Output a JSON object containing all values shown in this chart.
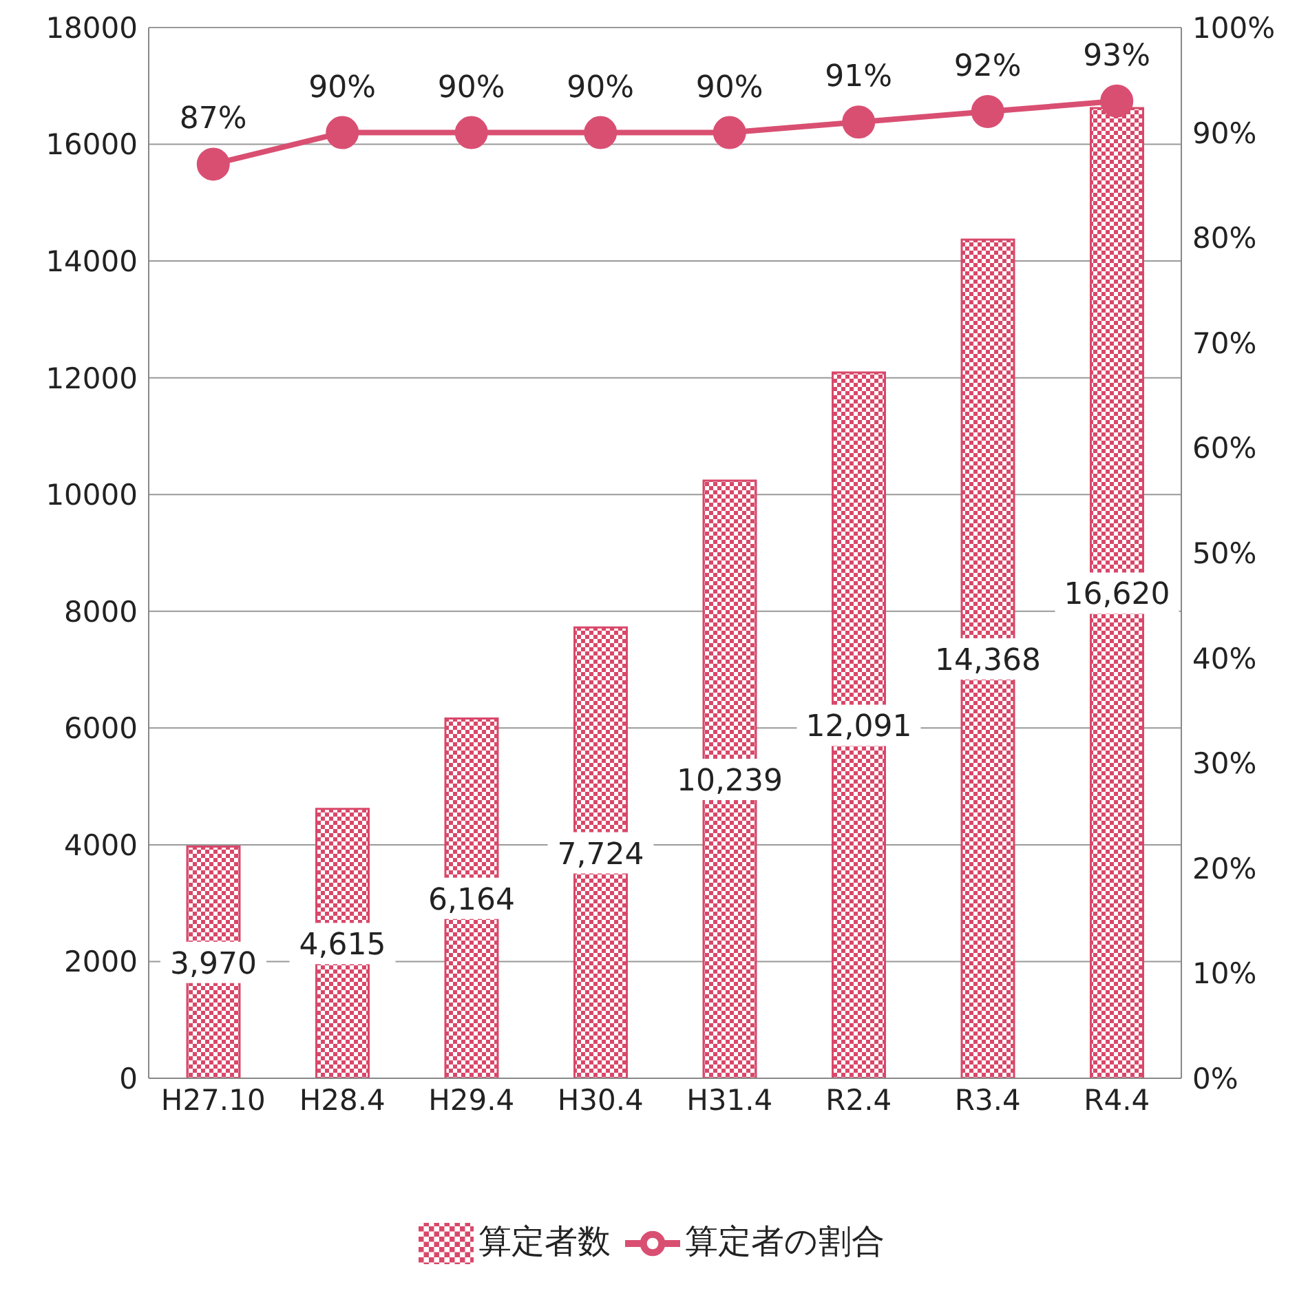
{
  "chart_data": {
    "type": "bar",
    "categories": [
      "H27.10",
      "H28.4",
      "H29.4",
      "H30.4",
      "H31.4",
      "R2.4",
      "R3.4",
      "R4.4"
    ],
    "series": [
      {
        "name": "算定者数",
        "color": "#d8486a",
        "values": [
          3970,
          4615,
          6164,
          7724,
          10239,
          12091,
          14368,
          16620
        ],
        "value_labels": [
          "3,970",
          "4,615",
          "6,164",
          "7,724",
          "10,239",
          "12,091",
          "14,368",
          "16,620"
        ]
      },
      {
        "name": "算定者の割合",
        "type": "line",
        "axis": "y2",
        "color": "#d94f72",
        "values": [
          87,
          90,
          90,
          90,
          90,
          91,
          92,
          93
        ],
        "value_labels": [
          "87%",
          "90%",
          "90%",
          "90%",
          "90%",
          "91%",
          "92%",
          "93%"
        ]
      }
    ],
    "ylim": [
      0,
      18000
    ],
    "yticks": [
      0,
      2000,
      4000,
      6000,
      8000,
      10000,
      12000,
      14000,
      16000,
      18000
    ],
    "y2lim": [
      0,
      100
    ],
    "y2ticks": [
      {
        "value": 0,
        "label": "0%"
      },
      {
        "value": 10,
        "label": "10%"
      },
      {
        "value": 20,
        "label": "20%"
      },
      {
        "value": 30,
        "label": "30%"
      },
      {
        "value": 40,
        "label": "40%"
      },
      {
        "value": 50,
        "label": "50%"
      },
      {
        "value": 60,
        "label": "60%"
      },
      {
        "value": 70,
        "label": "70%"
      },
      {
        "value": 80,
        "label": "80%"
      },
      {
        "value": 90,
        "label": "90%"
      },
      {
        "value": 100,
        "label": "100%"
      }
    ],
    "grid": "y",
    "legend": "bottom",
    "marker": "circle",
    "line_style": "solid"
  }
}
